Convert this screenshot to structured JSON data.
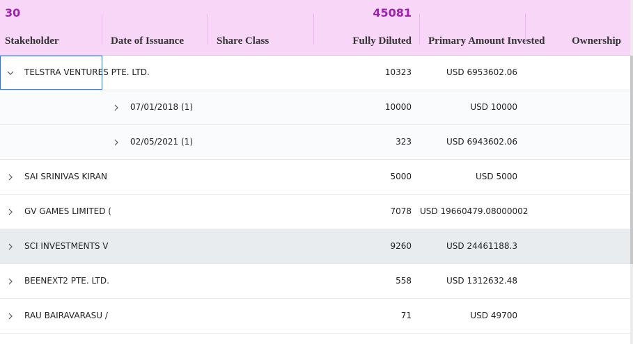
{
  "header": {
    "totals": {
      "stakeholder": "30",
      "fully_diluted": "45081"
    },
    "columns": [
      "Stakeholder",
      "Date of Issuance",
      "Share Class",
      "Fully Diluted",
      "Primary Amount Invested",
      "Ownership"
    ]
  },
  "rows": [
    {
      "stakeholder": "TELSTRA VENTURES PTE. LTD.",
      "date": "",
      "fd": "10323",
      "amount": "USD 6953602.06",
      "expanded": true,
      "level": 0
    },
    {
      "stakeholder": "",
      "date": "07/01/2018",
      "count": "(1)",
      "fd": "10000",
      "amount": "USD 10000",
      "expanded": false,
      "level": 1
    },
    {
      "stakeholder": "",
      "date": "02/05/2021",
      "count": "(1)",
      "fd": "323",
      "amount": "USD 6943602.06",
      "expanded": false,
      "level": 1
    },
    {
      "stakeholder": "SAI SRINIVAS KIRAN",
      "date": "",
      "fd": "5000",
      "amount": "USD 5000",
      "expanded": false,
      "level": 0
    },
    {
      "stakeholder": "GV GAMES LIMITED (",
      "date": "",
      "fd": "7078",
      "amount": "USD 19660479.08000002",
      "expanded": false,
      "level": 0
    },
    {
      "stakeholder": "SCI INVESTMENTS V",
      "date": "",
      "fd": "9260",
      "amount": "USD 24461188.3",
      "expanded": false,
      "level": 0
    },
    {
      "stakeholder": "BEENEXT2 PTE. LTD.",
      "date": "",
      "fd": "558",
      "amount": "USD 1312632.48",
      "expanded": false,
      "level": 0
    },
    {
      "stakeholder": "RAU BAIRAVARASU /",
      "date": "",
      "fd": "71",
      "amount": "USD 49700",
      "expanded": false,
      "level": 0
    }
  ],
  "icons": {
    "collapsed": "chevron-right-icon",
    "expanded": "chevron-down-icon"
  },
  "colors": {
    "header_bg": "#f7d6f7",
    "total_text": "#a020b0",
    "focus_border": "#3b6fd4",
    "hover_row": "#e8ecee"
  }
}
